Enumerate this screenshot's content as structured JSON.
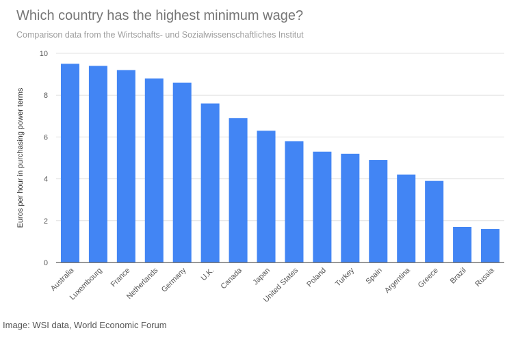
{
  "title": "Which country has the highest minimum wage?",
  "subtitle": "Comparison data from the Wirtschafts- und Sozialwissenschaftliches Institut",
  "caption": "Image: WSI data, World Economic Forum",
  "colors": {
    "bar": "#4285f4",
    "grid": "#e0e0e0",
    "axis": "#333333"
  },
  "chart_data": {
    "type": "bar",
    "title": "Which country has the highest minimum wage?",
    "subtitle": "Comparison data from the Wirtschafts- und Sozialwissenschaftliches Institut",
    "xlabel": "",
    "ylabel": "Euros per hour in purchasing power terms",
    "ylim": [
      0,
      10
    ],
    "yticks": [
      0,
      2,
      4,
      6,
      8,
      10
    ],
    "grid": true,
    "legend": "none",
    "categories": [
      "Australia",
      "Luxembourg",
      "France",
      "Netherlands",
      "Germany",
      "U.K.",
      "Canada",
      "Japan",
      "United States",
      "Poland",
      "Turkey",
      "Spain",
      "Argentina",
      "Greece",
      "Brazil",
      "Russia"
    ],
    "values": [
      9.5,
      9.4,
      9.2,
      8.8,
      8.6,
      7.6,
      6.9,
      6.3,
      5.8,
      5.3,
      5.2,
      4.9,
      4.2,
      3.9,
      1.7,
      1.6
    ]
  }
}
